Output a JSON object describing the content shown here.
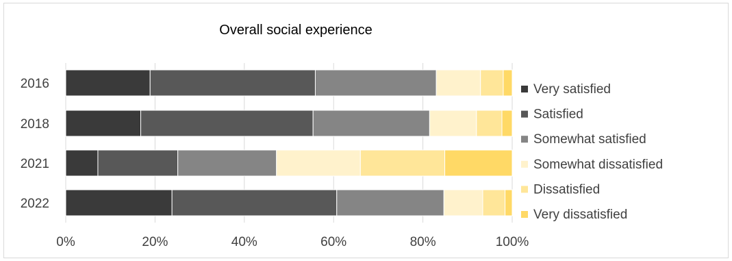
{
  "chart_data": {
    "type": "bar",
    "orientation": "horizontal",
    "stacked": "percent",
    "title": "Overall social experience",
    "categories": [
      "2016",
      "2018",
      "2021",
      "2022"
    ],
    "series": [
      {
        "name": "Very satisfied",
        "color": "#3a3a3a",
        "values": [
          18.9,
          16.8,
          7.2,
          23.8
        ]
      },
      {
        "name": "Satisfied",
        "color": "#585858",
        "values": [
          37.0,
          38.6,
          17.9,
          36.9
        ]
      },
      {
        "name": "Somewhat satisfied",
        "color": "#858585",
        "values": [
          27.1,
          26.1,
          22.1,
          24.0
        ]
      },
      {
        "name": "Somewhat dissatisfied",
        "color": "#fff2cc",
        "values": [
          9.9,
          10.5,
          18.8,
          8.7
        ]
      },
      {
        "name": "Dissatisfied",
        "color": "#ffe699",
        "values": [
          5.1,
          5.7,
          18.9,
          5.0
        ]
      },
      {
        "name": "Very dissatisfied",
        "color": "#ffd966",
        "values": [
          2.0,
          2.3,
          15.1,
          1.6
        ]
      }
    ],
    "xlim": [
      0,
      100
    ],
    "xticks": [
      "0%",
      "20%",
      "40%",
      "60%",
      "80%",
      "100%"
    ],
    "grid": "vertical",
    "legend_position": "right"
  }
}
